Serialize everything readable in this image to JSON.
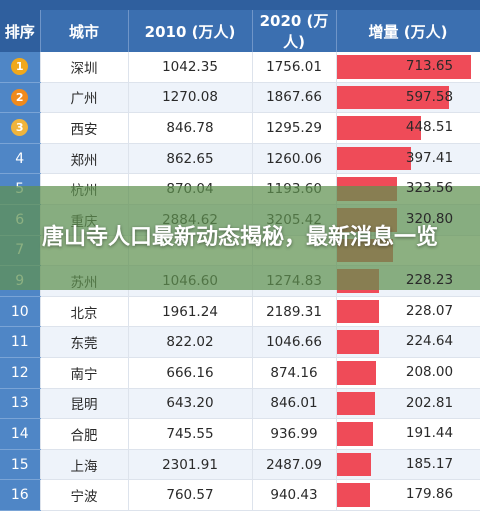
{
  "table": {
    "headers": [
      "排序",
      "城市",
      "2010 (万人)",
      "2020 (万人)",
      "增量 (万人)"
    ],
    "rows": [
      {
        "rank": "1",
        "city": "深圳",
        "y2010": "1042.35",
        "y2020": "1756.01",
        "increase": "713.65",
        "increase_value": 713.65
      },
      {
        "rank": "2",
        "city": "广州",
        "y2010": "1270.08",
        "y2020": "1867.66",
        "increase": "597.58",
        "increase_value": 597.58
      },
      {
        "rank": "3",
        "city": "西安",
        "y2010": "846.78",
        "y2020": "1295.29",
        "increase": "448.51",
        "increase_value": 448.51
      },
      {
        "rank": "4",
        "city": "郑州",
        "y2010": "862.65",
        "y2020": "1260.06",
        "increase": "397.41",
        "increase_value": 397.41
      },
      {
        "rank": "5",
        "city": "杭州",
        "y2010": "870.04",
        "y2020": "1193.60",
        "increase": "323.56",
        "increase_value": 323.56
      },
      {
        "rank": "6",
        "city": "重庆",
        "y2010": "2884.62",
        "y2020": "3205.42",
        "increase": "320.80",
        "increase_value": 320.8
      },
      {
        "rank": "7",
        "city": "",
        "y2010": "",
        "y2020": "",
        "increase": "",
        "increase_value": 300
      },
      {
        "rank": "9",
        "city": "苏州",
        "y2010": "1046.60",
        "y2020": "1274.83",
        "increase": "228.23",
        "increase_value": 228.23
      },
      {
        "rank": "10",
        "city": "北京",
        "y2010": "1961.24",
        "y2020": "2189.31",
        "increase": "228.07",
        "increase_value": 228.07
      },
      {
        "rank": "11",
        "city": "东莞",
        "y2010": "822.02",
        "y2020": "1046.66",
        "increase": "224.64",
        "increase_value": 224.64
      },
      {
        "rank": "12",
        "city": "南宁",
        "y2010": "666.16",
        "y2020": "874.16",
        "increase": "208.00",
        "increase_value": 208.0
      },
      {
        "rank": "13",
        "city": "昆明",
        "y2010": "643.20",
        "y2020": "846.01",
        "increase": "202.81",
        "increase_value": 202.81
      },
      {
        "rank": "14",
        "city": "合肥",
        "y2010": "745.55",
        "y2020": "936.99",
        "increase": "191.44",
        "increase_value": 191.44
      },
      {
        "rank": "15",
        "city": "上海",
        "y2010": "2301.91",
        "y2020": "2487.09",
        "increase": "185.17",
        "increase_value": 185.17
      },
      {
        "rank": "16",
        "city": "宁波",
        "y2010": "760.57",
        "y2020": "940.43",
        "increase": "179.86",
        "increase_value": 179.86
      }
    ]
  },
  "banner": {
    "text": "唐山寺人口最新动态揭秘，最新消息一览"
  },
  "colors": {
    "gold": "#f0a81c",
    "orange": "#f08a1c",
    "bronze": "#f0b43c",
    "bar": "#ef4b58"
  },
  "icons": {
    "medal": "medal-icon"
  }
}
